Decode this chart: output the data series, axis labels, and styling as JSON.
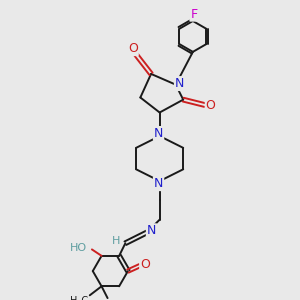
{
  "background_color": "#e9e9e9",
  "bond_color": "#1a1a1a",
  "nitrogen_color": "#2020cc",
  "oxygen_color": "#cc2020",
  "fluorine_color": "#cc00cc",
  "teal_color": "#5f9ea0",
  "lw": 1.4,
  "fs": 7.5,
  "xlim": [
    0,
    10
  ],
  "ylim": [
    0,
    14
  ]
}
